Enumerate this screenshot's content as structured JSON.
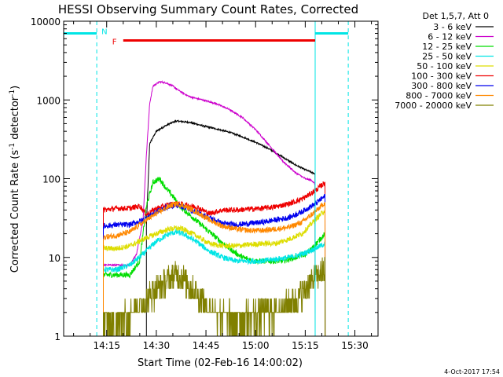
{
  "chart_data": {
    "type": "line",
    "title": "HESSI Observing Summary Count Rates, Corrected",
    "xlabel": "Start Time (02-Feb-16 14:00:02)",
    "ylabel_main": "Corrected Count Rate (s",
    "ylabel_sup1": "-1",
    "ylabel_mid": " detector",
    "ylabel_sup2": "-1",
    "ylabel_end": ")",
    "yscale": "log",
    "xlim_minutes": [
      2,
      97
    ],
    "ylim": [
      1,
      10000
    ],
    "x_ticks": [
      {
        "t": 15,
        "label": "14:15"
      },
      {
        "t": 30,
        "label": "14:30"
      },
      {
        "t": 45,
        "label": "14:45"
      },
      {
        "t": 60,
        "label": "15:00"
      },
      {
        "t": 75,
        "label": "15:15"
      },
      {
        "t": 90,
        "label": "15:30"
      }
    ],
    "y_ticks": [
      {
        "v": 1,
        "label": "1"
      },
      {
        "v": 10,
        "label": "10"
      },
      {
        "v": 100,
        "label": "100"
      },
      {
        "v": 1000,
        "label": "1000"
      },
      {
        "v": 10000,
        "label": "10000"
      }
    ],
    "legend_title": "Det 1,5,7, Att 0",
    "legend_placement": "top-right, outside plot",
    "series": [
      {
        "name": "3 - 6 keV",
        "color": "#000000",
        "points": [
          [
            27,
            25
          ],
          [
            28,
            280
          ],
          [
            30,
            400
          ],
          [
            32,
            450
          ],
          [
            34,
            500
          ],
          [
            36,
            540
          ],
          [
            38,
            530
          ],
          [
            40,
            520
          ],
          [
            44,
            470
          ],
          [
            48,
            430
          ],
          [
            52,
            390
          ],
          [
            56,
            340
          ],
          [
            60,
            290
          ],
          [
            64,
            240
          ],
          [
            68,
            190
          ],
          [
            72,
            150
          ],
          [
            75,
            130
          ],
          [
            77,
            120
          ],
          [
            78,
            115
          ]
        ]
      },
      {
        "name": "6 - 12 keV",
        "color": "#cc00cc",
        "points": [
          [
            14,
            8
          ],
          [
            22,
            8
          ],
          [
            24,
            11
          ],
          [
            26,
            30
          ],
          [
            27,
            200
          ],
          [
            28,
            900
          ],
          [
            29,
            1500
          ],
          [
            31,
            1700
          ],
          [
            33,
            1650
          ],
          [
            35,
            1500
          ],
          [
            37,
            1300
          ],
          [
            40,
            1100
          ],
          [
            44,
            1000
          ],
          [
            48,
            900
          ],
          [
            52,
            760
          ],
          [
            56,
            600
          ],
          [
            60,
            420
          ],
          [
            64,
            270
          ],
          [
            68,
            170
          ],
          [
            72,
            120
          ],
          [
            75,
            100
          ],
          [
            77,
            95
          ],
          [
            78,
            85
          ]
        ]
      },
      {
        "name": "12 - 25 keV",
        "color": "#00dd00",
        "points": [
          [
            14,
            6
          ],
          [
            22,
            6
          ],
          [
            25,
            9
          ],
          [
            27,
            45
          ],
          [
            29,
            90
          ],
          [
            31,
            100
          ],
          [
            33,
            75
          ],
          [
            35,
            60
          ],
          [
            37,
            45
          ],
          [
            40,
            35
          ],
          [
            44,
            25
          ],
          [
            48,
            18
          ],
          [
            52,
            13
          ],
          [
            56,
            10
          ],
          [
            60,
            9
          ],
          [
            64,
            9
          ],
          [
            68,
            9
          ],
          [
            72,
            10
          ],
          [
            75,
            11
          ],
          [
            77,
            13
          ],
          [
            80,
            18
          ],
          [
            81,
            20
          ]
        ]
      },
      {
        "name": "25 - 50 keV",
        "color": "#00e5e5",
        "points": [
          [
            14,
            7
          ],
          [
            18,
            7
          ],
          [
            22,
            8
          ],
          [
            26,
            11
          ],
          [
            30,
            16
          ],
          [
            34,
            20
          ],
          [
            36,
            21
          ],
          [
            38,
            20
          ],
          [
            42,
            16
          ],
          [
            46,
            12
          ],
          [
            50,
            10
          ],
          [
            54,
            9
          ],
          [
            58,
            9
          ],
          [
            62,
            9
          ],
          [
            66,
            9.5
          ],
          [
            70,
            10
          ],
          [
            74,
            11
          ],
          [
            78,
            13
          ],
          [
            81,
            15
          ]
        ]
      },
      {
        "name": "50 - 100 keV",
        "color": "#dddd00",
        "points": [
          [
            14,
            13
          ],
          [
            18,
            13
          ],
          [
            22,
            14
          ],
          [
            26,
            17
          ],
          [
            30,
            20
          ],
          [
            34,
            23
          ],
          [
            36,
            23.5
          ],
          [
            38,
            23
          ],
          [
            42,
            19
          ],
          [
            46,
            15
          ],
          [
            50,
            14
          ],
          [
            54,
            14
          ],
          [
            58,
            14.5
          ],
          [
            62,
            15
          ],
          [
            66,
            15
          ],
          [
            70,
            17
          ],
          [
            74,
            20
          ],
          [
            78,
            30
          ],
          [
            81,
            40
          ]
        ]
      },
      {
        "name": "100 - 300 keV",
        "color": "#ee0000",
        "points": [
          [
            14,
            40
          ],
          [
            18,
            42
          ],
          [
            22,
            42
          ],
          [
            25,
            45
          ],
          [
            27,
            35
          ],
          [
            30,
            42
          ],
          [
            34,
            47
          ],
          [
            36,
            48
          ],
          [
            38,
            47
          ],
          [
            42,
            44
          ],
          [
            44,
            40
          ],
          [
            46,
            36
          ],
          [
            48,
            38
          ],
          [
            50,
            40
          ],
          [
            54,
            40
          ],
          [
            58,
            41
          ],
          [
            62,
            42
          ],
          [
            66,
            44
          ],
          [
            70,
            48
          ],
          [
            74,
            55
          ],
          [
            78,
            70
          ],
          [
            81,
            90
          ]
        ]
      },
      {
        "name": "300 - 800 keV",
        "color": "#0000ee",
        "points": [
          [
            14,
            25
          ],
          [
            18,
            26
          ],
          [
            22,
            26
          ],
          [
            26,
            30
          ],
          [
            30,
            38
          ],
          [
            34,
            45
          ],
          [
            36,
            46
          ],
          [
            38,
            44
          ],
          [
            42,
            38
          ],
          [
            46,
            32
          ],
          [
            50,
            27
          ],
          [
            54,
            26
          ],
          [
            58,
            27
          ],
          [
            62,
            28
          ],
          [
            66,
            30
          ],
          [
            70,
            32
          ],
          [
            74,
            38
          ],
          [
            78,
            48
          ],
          [
            81,
            60
          ]
        ]
      },
      {
        "name": "800 - 7000 keV",
        "color": "#ff8800",
        "points": [
          [
            14,
            18
          ],
          [
            18,
            19
          ],
          [
            22,
            21
          ],
          [
            26,
            28
          ],
          [
            30,
            36
          ],
          [
            34,
            45
          ],
          [
            36,
            48
          ],
          [
            38,
            46
          ],
          [
            42,
            38
          ],
          [
            46,
            30
          ],
          [
            50,
            25
          ],
          [
            54,
            23
          ],
          [
            58,
            22
          ],
          [
            62,
            22
          ],
          [
            66,
            23
          ],
          [
            70,
            24
          ],
          [
            74,
            28
          ],
          [
            78,
            38
          ],
          [
            81,
            50
          ]
        ]
      },
      {
        "name": "7000 - 20000 keV",
        "color": "#808000",
        "points": [
          [
            14,
            1.6
          ],
          [
            18,
            1.6
          ],
          [
            22,
            2
          ],
          [
            26,
            2.5
          ],
          [
            30,
            4
          ],
          [
            34,
            5.5
          ],
          [
            36,
            6
          ],
          [
            38,
            5.5
          ],
          [
            42,
            3.5
          ],
          [
            46,
            2.2
          ],
          [
            50,
            1.8
          ],
          [
            54,
            1.7
          ],
          [
            58,
            1.8
          ],
          [
            62,
            2
          ],
          [
            66,
            2
          ],
          [
            70,
            2.5
          ],
          [
            74,
            3.5
          ],
          [
            78,
            5.5
          ],
          [
            81,
            7
          ]
        ]
      }
    ],
    "flags": [
      {
        "label": "N",
        "color": "#00e5e5",
        "segments": [
          [
            2,
            12
          ],
          [
            78,
            88
          ]
        ],
        "level": 7000
      },
      {
        "label": "F",
        "color": "#ee0000",
        "segments": [
          [
            20,
            78
          ]
        ],
        "level": 5700
      }
    ],
    "vertical_markers": [
      {
        "t": 12,
        "style": "dashed",
        "color": "#00e5e5"
      },
      {
        "t": 78,
        "style": "solid",
        "color": "#00e5e5"
      },
      {
        "t": 88,
        "style": "dashed",
        "color": "#00e5e5"
      }
    ],
    "colors": {
      "axis": "#000000",
      "background": "#ffffff"
    }
  },
  "footer": {
    "timestamp": "4-Oct-2017 17:54"
  }
}
